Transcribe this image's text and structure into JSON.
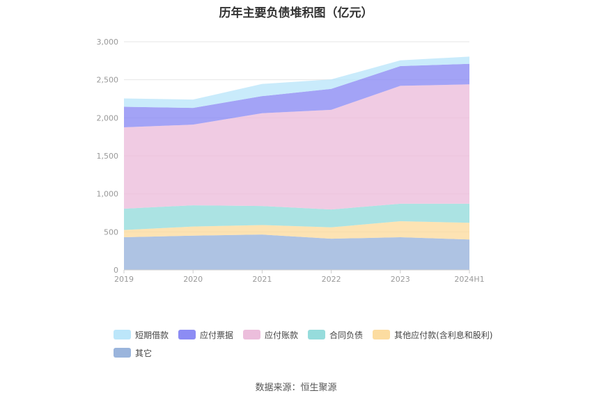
{
  "title": "历年主要负债堆积图（亿元）",
  "source": "数据来源：恒生聚源",
  "chart_data": {
    "type": "area",
    "stacked": true,
    "x": [
      "2019",
      "2020",
      "2021",
      "2022",
      "2023",
      "2024H1"
    ],
    "ylim": [
      0,
      3000
    ],
    "yticks": [
      0,
      500,
      1000,
      1500,
      2000,
      2500,
      3000
    ],
    "ytick_labels": [
      "0",
      "500",
      "1,000",
      "1,500",
      "2,000",
      "2,500",
      "3,000"
    ],
    "grid": true,
    "legend_position": "bottom",
    "series": [
      {
        "name": "其它",
        "color": "#9ab4dc",
        "values": [
          430,
          450,
          465,
          410,
          430,
          400
        ]
      },
      {
        "name": "其他应付款(含利息和股利)",
        "color": "#fcdca0",
        "values": [
          95,
          120,
          125,
          150,
          210,
          220
        ]
      },
      {
        "name": "合同负债",
        "color": "#96dcdc",
        "values": [
          280,
          280,
          250,
          235,
          230,
          250
        ]
      },
      {
        "name": "应付账款",
        "color": "#ecbedc",
        "values": [
          1070,
          1060,
          1220,
          1310,
          1550,
          1570
        ]
      },
      {
        "name": "应付票据",
        "color": "#8c8cf4",
        "values": [
          270,
          220,
          225,
          275,
          260,
          270
        ]
      },
      {
        "name": "短期借款",
        "color": "#bce6fa",
        "values": [
          110,
          110,
          160,
          125,
          75,
          95
        ]
      }
    ],
    "legend_order": [
      "短期借款",
      "应付票据",
      "应付账款",
      "合同负债",
      "其他应付款(含利息和股利)",
      "其它"
    ]
  }
}
